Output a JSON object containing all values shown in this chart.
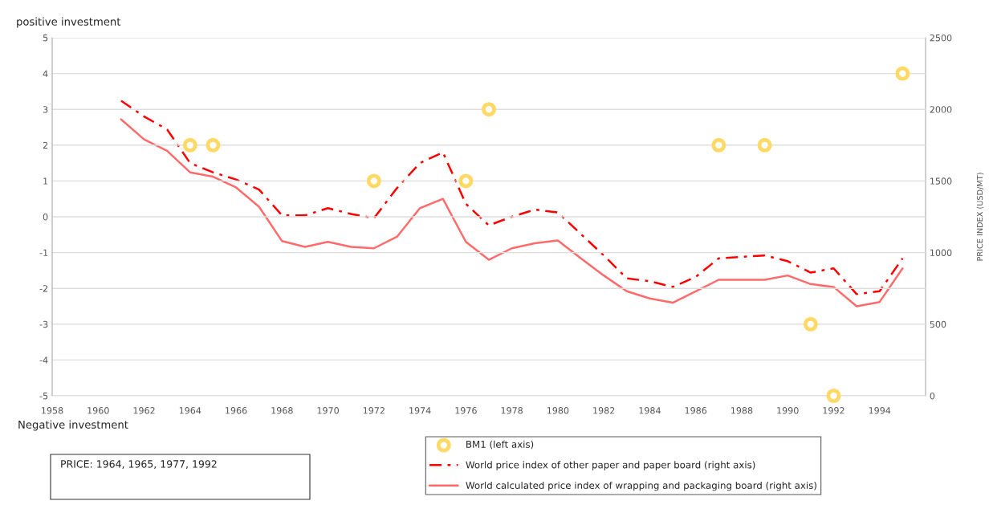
{
  "chart_data": {
    "type": "line",
    "ylabel": "positive investment",
    "y2label": "PRICE INDEX (USD/MT)",
    "annotations": [
      "Negative investment",
      "PRICE: 1964, 1965, 1977, 1992"
    ],
    "xlim": [
      1958,
      1996
    ],
    "xticks": [
      1958,
      1960,
      1962,
      1964,
      1966,
      1968,
      1970,
      1972,
      1974,
      1976,
      1978,
      1980,
      1982,
      1984,
      1986,
      1988,
      1990,
      1992,
      1994
    ],
    "ylim": [
      -5,
      5
    ],
    "yticks": [
      -5,
      -4,
      -3,
      -2,
      -1,
      0,
      1,
      2,
      3,
      4,
      5
    ],
    "y2lim": [
      0,
      2500
    ],
    "y2ticks": [
      0,
      500,
      1000,
      1500,
      2000,
      2500
    ],
    "grid": "y",
    "legend": "bottom",
    "series": [
      {
        "name": "BM1 (left axis)",
        "type": "scatter",
        "color": "#ffd966",
        "marker": "circle",
        "x": [
          1964,
          1965,
          1972,
          1976,
          1977,
          1987,
          1989,
          1991,
          1992,
          1995
        ],
        "values": [
          2,
          2,
          1,
          1,
          3,
          2,
          2,
          -3,
          -5,
          4
        ]
      },
      {
        "name": "World price index of other paper and paper board (right axis)",
        "axis": "y2",
        "color": "#ff0000",
        "line_style": "dashed",
        "x": [
          1961,
          1962,
          1963,
          1964,
          1965,
          1966,
          1967,
          1968,
          1969,
          1970,
          1971,
          1972,
          1973,
          1974,
          1975,
          1976,
          1977,
          1978,
          1979,
          1980,
          1981,
          1982,
          1983,
          1984,
          1985,
          1986,
          1987,
          1988,
          1989,
          1990,
          1991,
          1992,
          1993,
          1994,
          1995
        ],
        "values": [
          2060,
          1950,
          1860,
          1625,
          1560,
          1510,
          1440,
          1260,
          1260,
          1310,
          1270,
          1240,
          1450,
          1625,
          1700,
          1340,
          1190,
          1250,
          1300,
          1280,
          1130,
          980,
          820,
          800,
          760,
          830,
          960,
          970,
          980,
          940,
          860,
          890,
          710,
          730,
          960
        ]
      },
      {
        "name": "World calculated price index of wrapping and packaging board (right axis)",
        "axis": "y2",
        "color": "#ff6b6b",
        "line_style": "solid",
        "x": [
          1961,
          1962,
          1963,
          1964,
          1965,
          1966,
          1967,
          1968,
          1969,
          1970,
          1971,
          1972,
          1973,
          1974,
          1975,
          1976,
          1977,
          1978,
          1979,
          1980,
          1981,
          1982,
          1983,
          1984,
          1985,
          1986,
          1987,
          1988,
          1989,
          1990,
          1991,
          1992,
          1993,
          1994,
          1995
        ],
        "values": [
          1930,
          1790,
          1710,
          1560,
          1530,
          1455,
          1320,
          1080,
          1040,
          1075,
          1040,
          1030,
          1110,
          1310,
          1375,
          1075,
          950,
          1030,
          1065,
          1085,
          960,
          840,
          730,
          680,
          650,
          730,
          810,
          810,
          810,
          840,
          780,
          760,
          625,
          655,
          890
        ]
      }
    ]
  }
}
